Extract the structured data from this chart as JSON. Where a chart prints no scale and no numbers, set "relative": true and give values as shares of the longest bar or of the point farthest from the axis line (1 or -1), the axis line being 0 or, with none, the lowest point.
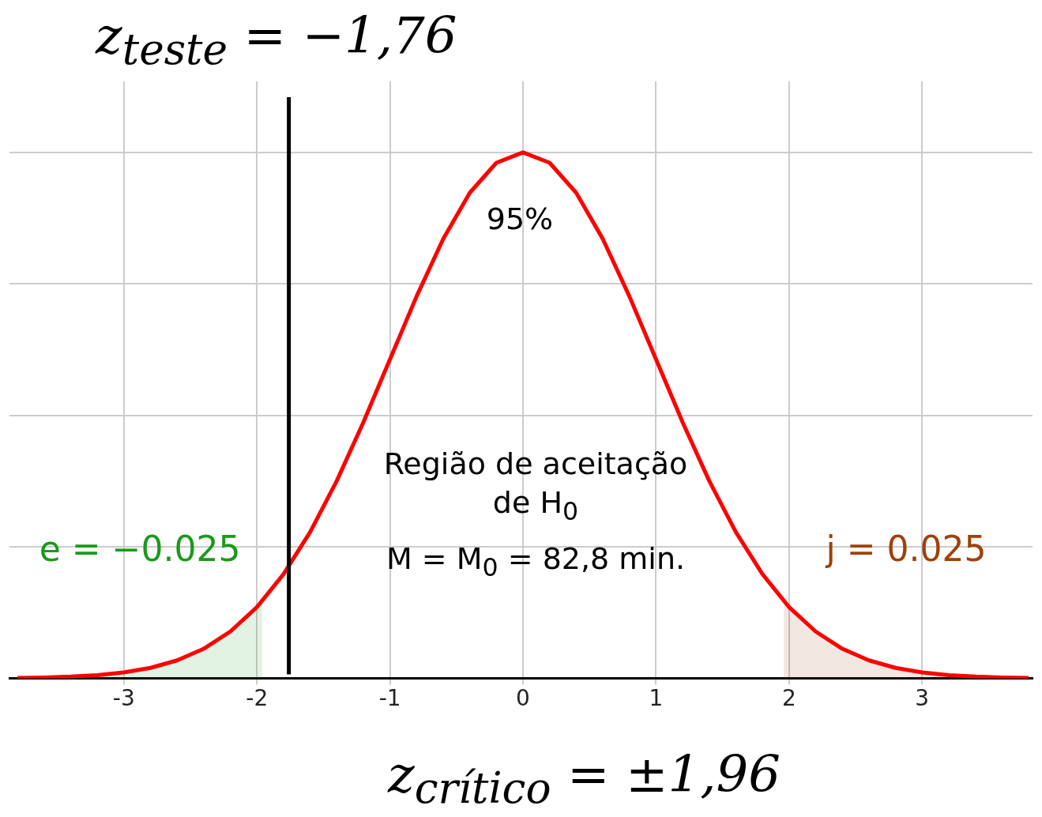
{
  "chart_data": {
    "type": "line",
    "title": "z$_{teste}$ = −1,76",
    "xlabel": "z$_{crítico}$ = ±1,96",
    "relative": true,
    "xlim": [
      -3.86,
      3.83
    ],
    "xticks": [
      -3,
      -2,
      -1,
      0,
      1,
      2,
      3
    ],
    "tick_labels": "x",
    "grid": true,
    "legend": false,
    "marker": "none",
    "annotations": [
      "95%",
      "Região de aceitação de H$_{0}$",
      "M = M$_{0}$ = 82,8 min."
    ],
    "ref_lines": [
      {
        "axis": "x",
        "value": -1.76,
        "color": "#000000"
      }
    ],
    "series": [
      {
        "type": "area",
        "name": "e = −0.025",
        "color": "#1a9a1a",
        "x": [
          -3.8,
          -3.6,
          -3.4,
          -3.2,
          -3.0,
          -2.8,
          -2.6,
          -2.4,
          -2.2,
          -2.0,
          -1.96
        ],
        "values": [
          0.0007,
          0.0015,
          0.0031,
          0.006,
          0.0111,
          0.0198,
          0.034,
          0.0561,
          0.0889,
          0.1353,
          0.1465
        ]
      },
      {
        "type": "area",
        "name": "j = 0.025",
        "color": "#a0400a",
        "x": [
          1.96,
          2.0,
          2.2,
          2.4,
          2.6,
          2.8,
          3.0,
          3.2,
          3.4,
          3.6,
          3.8
        ],
        "values": [
          0.1465,
          0.1353,
          0.0889,
          0.0561,
          0.034,
          0.0198,
          0.0111,
          0.006,
          0.0031,
          0.0015,
          0.0007
        ]
      },
      {
        "color": "#ff0000",
        "x": [
          -3.8,
          -3.6,
          -3.4,
          -3.2,
          -3.0,
          -2.8,
          -2.6,
          -2.4,
          -2.2,
          -2.0,
          -1.8,
          -1.6,
          -1.4,
          -1.2,
          -1.0,
          -0.8,
          -0.6,
          -0.4,
          -0.2,
          0,
          0.2,
          0.4,
          0.6,
          0.8,
          1.0,
          1.2,
          1.4,
          1.6,
          1.8,
          2.0,
          2.2,
          2.4,
          2.6,
          2.8,
          3.0,
          3.2,
          3.4,
          3.6,
          3.8
        ],
        "values": [
          0.0007,
          0.0015,
          0.0031,
          0.006,
          0.0111,
          0.0198,
          0.034,
          0.0561,
          0.0889,
          0.1353,
          0.1979,
          0.278,
          0.3753,
          0.4868,
          0.6065,
          0.7261,
          0.8353,
          0.9231,
          0.9802,
          1,
          0.9802,
          0.9231,
          0.8353,
          0.7261,
          0.6065,
          0.4868,
          0.3753,
          0.278,
          0.1979,
          0.1353,
          0.0889,
          0.0561,
          0.034,
          0.0198,
          0.0111,
          0.006,
          0.0031,
          0.0015,
          0.0007
        ]
      }
    ]
  }
}
